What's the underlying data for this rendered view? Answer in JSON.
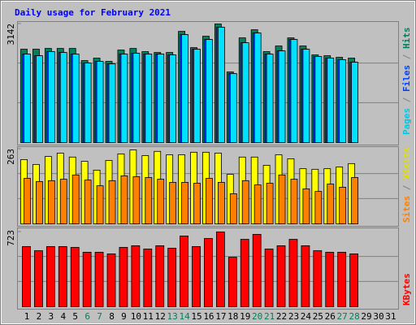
{
  "chart_data": [
    {
      "type": "bar",
      "title": "Daily usage for February 2021",
      "ylim": [
        0,
        3142
      ],
      "yticks": [
        3142
      ],
      "series": [
        {
          "name": "Hits",
          "color": "#00805c",
          "values": [
            2474,
            2474,
            2494,
            2494,
            2494,
            2172,
            2237,
            2151,
            2451,
            2494,
            2409,
            2387,
            2387,
            2946,
            2516,
            2817,
            3142,
            1871,
            2774,
            2989,
            2409,
            2559,
            2774,
            2559,
            2323,
            2301,
            2258,
            2237,
            null,
            null,
            null
          ]
        },
        {
          "name": "Files",
          "color": "#0040ff",
          "values": [
            2345,
            2301,
            2409,
            2387,
            2345,
            2107,
            2151,
            2086,
            2345,
            2366,
            2345,
            2345,
            2323,
            2860,
            2473,
            2731,
            3055,
            1829,
            2645,
            2903,
            2345,
            2430,
            2731,
            2473,
            2280,
            2237,
            2194,
            2129,
            null,
            null,
            null
          ]
        },
        {
          "name": "Pages",
          "color": "#00e0ff",
          "values": [
            2345,
            2301,
            2409,
            2387,
            2345,
            2107,
            2151,
            2086,
            2345,
            2366,
            2345,
            2345,
            2323,
            2860,
            2473,
            2731,
            3055,
            1829,
            2645,
            2903,
            2345,
            2430,
            2731,
            2473,
            2280,
            2237,
            2194,
            2129,
            null,
            null,
            null
          ]
        }
      ]
    },
    {
      "type": "bar",
      "ylim": [
        0,
        263
      ],
      "yticks": [
        263
      ],
      "series": [
        {
          "name": "Visits",
          "color": "#ffff00",
          "values": [
            226,
            209,
            237,
            249,
            235,
            220,
            189,
            223,
            246,
            260,
            240,
            255,
            243,
            243,
            252,
            252,
            249,
            174,
            235,
            235,
            206,
            243,
            229,
            194,
            192,
            194,
            200,
            212,
            null,
            null,
            null
          ]
        },
        {
          "name": "Sites",
          "color": "#ff8000",
          "values": [
            160,
            149,
            152,
            157,
            172,
            154,
            134,
            152,
            169,
            166,
            163,
            157,
            146,
            146,
            143,
            160,
            146,
            106,
            152,
            137,
            143,
            172,
            157,
            123,
            114,
            140,
            129,
            163,
            null,
            null,
            null
          ]
        }
      ]
    },
    {
      "type": "bar",
      "ylim": [
        0,
        723
      ],
      "yticks": [
        723
      ],
      "categories": [
        "1",
        "2",
        "3",
        "4",
        "5",
        "6",
        "7",
        "8",
        "9",
        "10",
        "11",
        "12",
        "13",
        "14",
        "15",
        "16",
        "17",
        "18",
        "19",
        "20",
        "21",
        "22",
        "23",
        "24",
        "25",
        "26",
        "27",
        "28",
        "29",
        "30",
        "31"
      ],
      "category_colors": [
        "#000000",
        "#000000",
        "#000000",
        "#000000",
        "#000000",
        "#00805c",
        "#00805c",
        "#000000",
        "#000000",
        "#000000",
        "#000000",
        "#000000",
        "#00805c",
        "#00805c",
        "#000000",
        "#000000",
        "#000000",
        "#000000",
        "#000000",
        "#00805c",
        "#00805c",
        "#000000",
        "#000000",
        "#000000",
        "#000000",
        "#000000",
        "#00805c",
        "#00805c",
        "#000000",
        "#000000",
        "#000000"
      ],
      "series": [
        {
          "name": "KBytes",
          "color": "#ff0000",
          "values": [
            582,
            542,
            582,
            582,
            574,
            527,
            527,
            511,
            574,
            590,
            558,
            590,
            566,
            684,
            582,
            660,
            723,
            479,
            652,
            700,
            558,
            590,
            652,
            590,
            542,
            527,
            527,
            511,
            null,
            null,
            null
          ]
        }
      ]
    }
  ]
}
